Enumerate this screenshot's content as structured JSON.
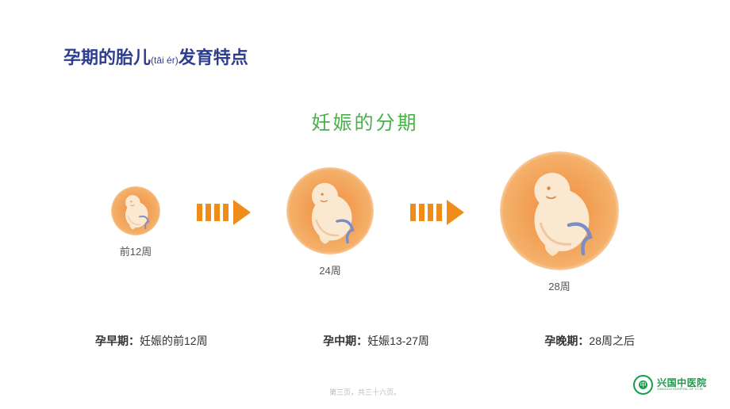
{
  "title": {
    "pre": "孕期的胎儿",
    "pinyin": "(tāi ér)",
    "post": "发育特点",
    "color": "#2e3e8e",
    "fontsize": 22
  },
  "subtitle": {
    "text": "妊娠的分期",
    "color": "#49b04a",
    "fontsize": 24
  },
  "arrow": {
    "color": "#f08c1a",
    "stripe_count": 4
  },
  "fetus_style": {
    "bg_outer": "#f4b06a",
    "bg_inner": "#ef8b3b",
    "body": "#fbe8d0",
    "shadow": "#d98a4a",
    "cord": "#7c8dc6"
  },
  "stages": [
    {
      "label": "前12周",
      "diameter": 62
    },
    {
      "label": "24周",
      "diameter": 110
    },
    {
      "label": "28周",
      "diameter": 150
    }
  ],
  "periods": [
    {
      "name": "孕早期：",
      "desc": "妊娠的前12周"
    },
    {
      "name": "孕中期：",
      "desc": "妊娠13-27周"
    },
    {
      "name": "孕晚期：",
      "desc": "28周之后"
    }
  ],
  "footer": "第三页，共三十六页。",
  "logo": {
    "cn": "兴国中医院",
    "en": "XINGGUO HOSPITAL OF T.C.M",
    "color": "#1a9b4c"
  }
}
